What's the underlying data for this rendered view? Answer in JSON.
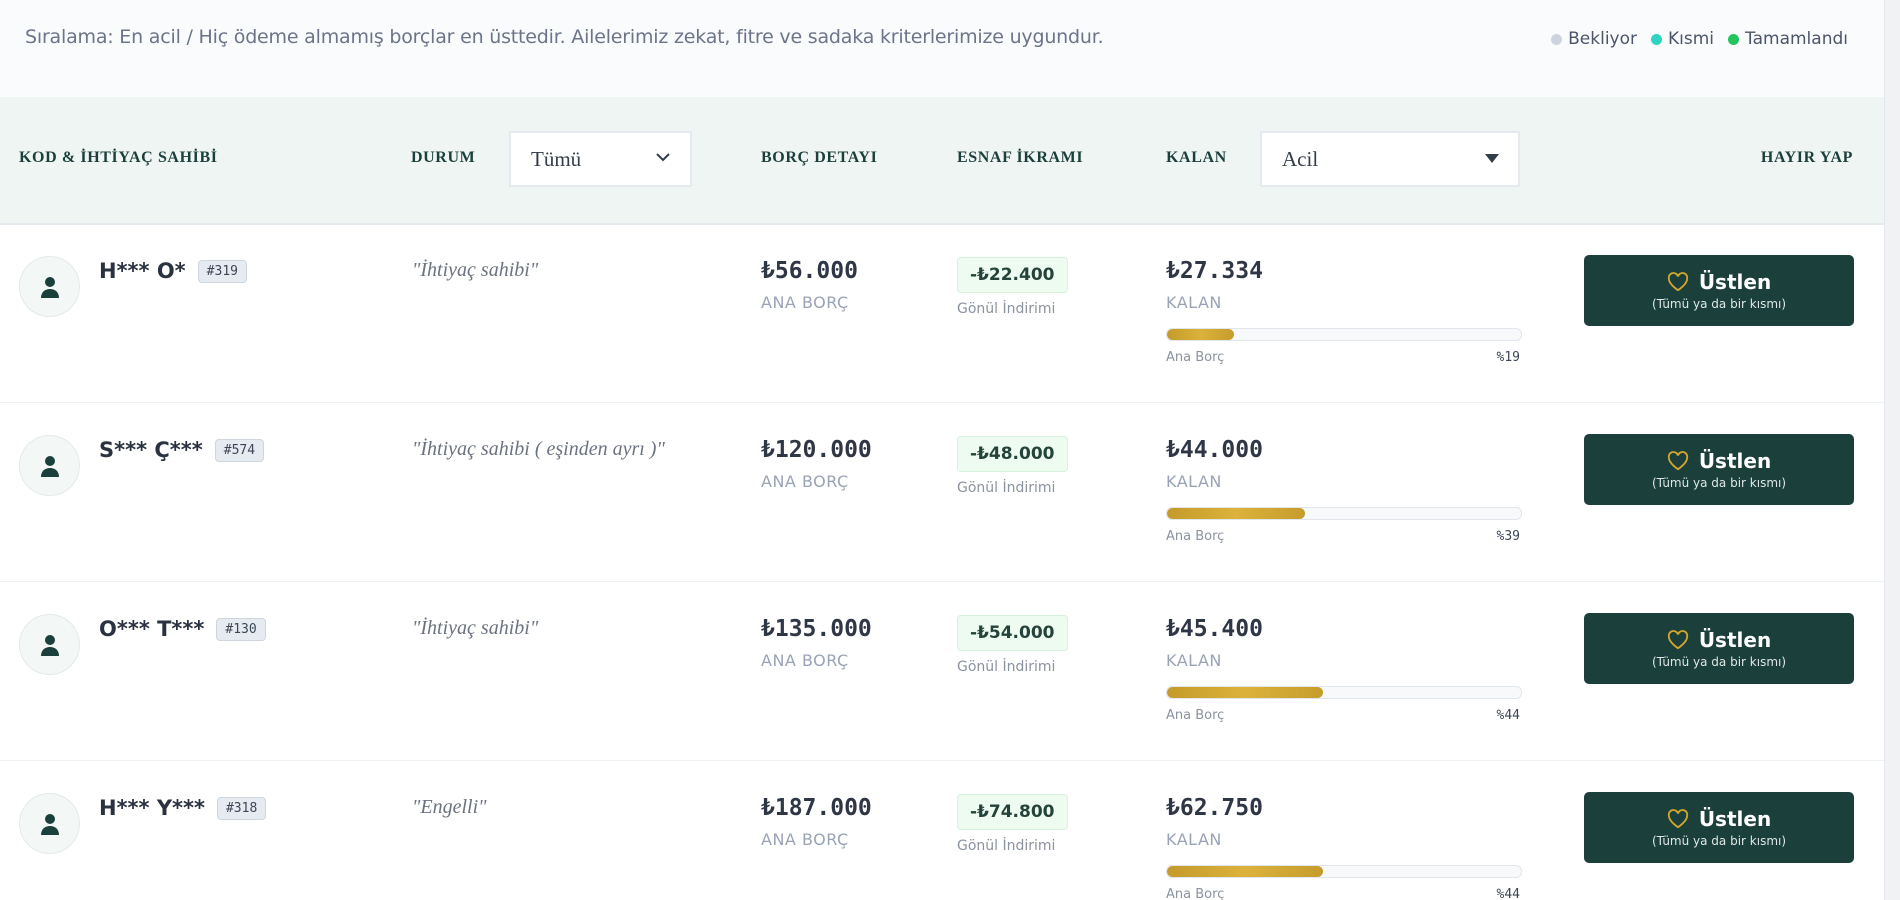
{
  "top": {
    "sort_note": "Sıralama: En acil / Hiç ödeme almamış borçlar en üsttedir. Ailelerimiz zekat, fitre ve sadaka kriterlerimize uygundur.",
    "legend": [
      {
        "label": "Bekliyor",
        "color": "#cdd3df"
      },
      {
        "label": "Kısmi",
        "color": "#2dd4bf"
      },
      {
        "label": "Tamamlandı",
        "color": "#22c55e"
      }
    ]
  },
  "header": {
    "col_name": "KOD & İHTİYAÇ SAHİBİ",
    "col_status": "DURUM",
    "status_filter": "Tümü",
    "col_debt": "BORÇ DETAYI",
    "col_discount": "ESNAF İKRAMI",
    "col_remaining": "KALAN",
    "sort_select": "Acil",
    "col_action": "HAYIR YAP"
  },
  "labels": {
    "main_debt": "ANA BORÇ",
    "remaining": "KALAN",
    "discount_note": "Gönül İndirimi",
    "bar_label": "Ana Borç",
    "button_main": "Üstlen",
    "button_sub": "(Tümü ya da bir kısmı)"
  },
  "colors": {
    "accent": "#1b3f3a",
    "gold": "#c9a227"
  },
  "rows": [
    {
      "name": "H*** O*",
      "code": "#319",
      "status": "\"İhtiyaç sahibi\"",
      "debt": "₺56.000",
      "discount": "-₺22.400",
      "remaining": "₺27.334",
      "percent": 19,
      "percent_label": "%19"
    },
    {
      "name": "S*** Ç***",
      "code": "#574",
      "status": "\"İhtiyaç sahibi ( eşinden ayrı )\"",
      "debt": "₺120.000",
      "discount": "-₺48.000",
      "remaining": "₺44.000",
      "percent": 39,
      "percent_label": "%39"
    },
    {
      "name": "O*** T***",
      "code": "#130",
      "status": "\"İhtiyaç sahibi\"",
      "debt": "₺135.000",
      "discount": "-₺54.000",
      "remaining": "₺45.400",
      "percent": 44,
      "percent_label": "%44"
    },
    {
      "name": "H*** Y***",
      "code": "#318",
      "status": "\"Engelli\"",
      "debt": "₺187.000",
      "discount": "-₺74.800",
      "remaining": "₺62.750",
      "percent": 44,
      "percent_label": "%44"
    }
  ]
}
